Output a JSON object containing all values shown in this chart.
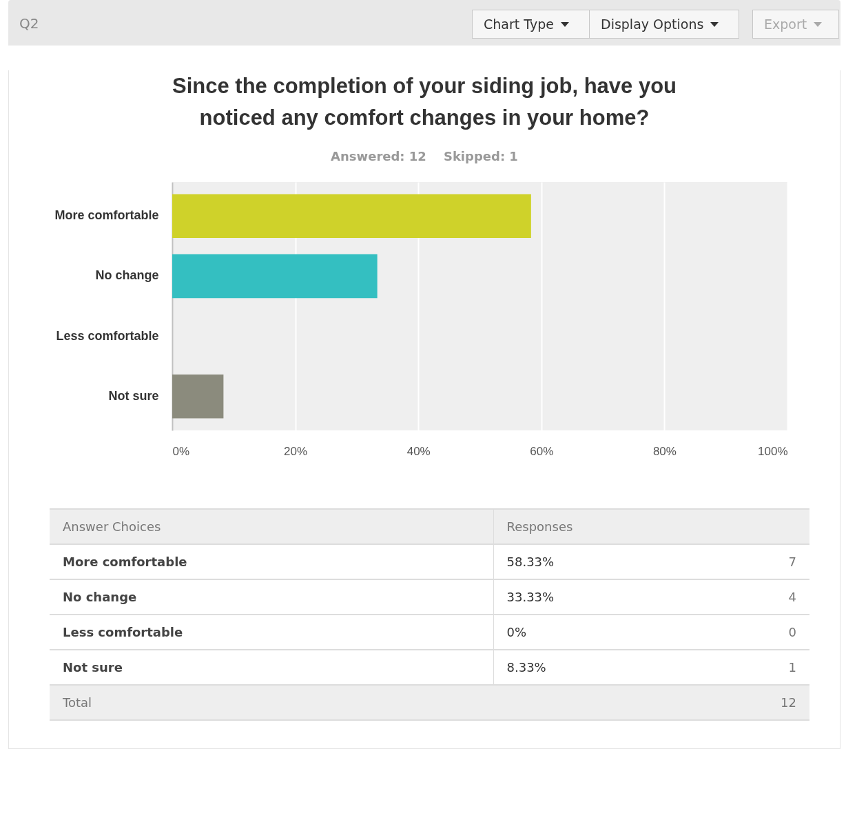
{
  "chart_data": {
    "type": "bar",
    "orientation": "horizontal",
    "title": "Since the completion of your siding job, have you noticed any comfort changes in your home?",
    "subtitle": "Answered: 12    Skipped: 1",
    "categories": [
      "More comfortable",
      "No change",
      "Less comfortable",
      "Not sure"
    ],
    "values": [
      58.33,
      33.33,
      0,
      8.33
    ],
    "colors": [
      "#cfd22a",
      "#34bfc1",
      "#e0e0e0",
      "#8b8b7d"
    ],
    "xlim": [
      0,
      100
    ],
    "xticks": [
      {
        "value": 0,
        "label": "0%"
      },
      {
        "value": 20,
        "label": "20%"
      },
      {
        "value": 40,
        "label": "40%"
      },
      {
        "value": 60,
        "label": "60%"
      },
      {
        "value": 80,
        "label": "80%"
      },
      {
        "value": 100,
        "label": "100%"
      }
    ],
    "grid": "x",
    "legend": false,
    "annotations": [
      "Q2",
      "Chart Type",
      "Display Options",
      "Export",
      "Answer Choices",
      "Responses",
      "58.33%",
      "33.33%",
      "0%",
      "8.33%",
      "7",
      "4",
      "0",
      "1",
      "Total",
      "12"
    ]
  }
}
